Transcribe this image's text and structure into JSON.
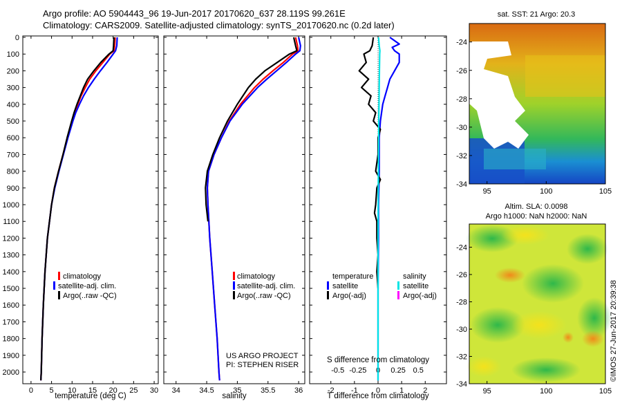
{
  "header": {
    "line1": "Argo profile: AO 5904443_96 19-Jun-2017 20170620_637 28.119S 99.261E",
    "line2": "Climatology: CARS2009. Satellite-adjusted climatology: synTS_20170620.nc (0.2d later)"
  },
  "colors": {
    "climatology": "#ff0000",
    "satellite": "#0000ff",
    "argo": "#000000",
    "salinity_satellite": "#00e5e5",
    "salinity_argo": "#ff00ff"
  },
  "depth_ticks": [
    "0",
    "100",
    "200",
    "300",
    "400",
    "500",
    "600",
    "700",
    "800",
    "900",
    "1000",
    "1100",
    "1200",
    "1300",
    "1400",
    "1500",
    "1600",
    "1700",
    "1800",
    "1900",
    "2000"
  ],
  "chart_data": [
    {
      "type": "line",
      "panel": "temperature",
      "xlabel": "temperature (deg C)",
      "xlim": [
        -2,
        31
      ],
      "ylim": [
        2070,
        0
      ],
      "xticks": [
        "0",
        "5",
        "10",
        "15",
        "20",
        "25",
        "30"
      ],
      "legend": [
        "climatology",
        "satellite-adj. clim.",
        "Argo(..raw -QC)"
      ],
      "series": [
        {
          "name": "climatology",
          "y": [
            0,
            50,
            80,
            100,
            150,
            200,
            250,
            300,
            350,
            400,
            450,
            500,
            600,
            700,
            800,
            900,
            1000,
            1200,
            1400,
            1600,
            1800,
            2000,
            2050
          ],
          "x": [
            20.5,
            20.4,
            20.2,
            19.2,
            17.5,
            15.8,
            14.3,
            13.2,
            12.2,
            11.4,
            10.6,
            10.0,
            8.9,
            7.8,
            6.7,
            5.7,
            5.0,
            4.0,
            3.4,
            3.0,
            2.7,
            2.5,
            2.4
          ]
        },
        {
          "name": "satellite-adj. clim.",
          "y": [
            0,
            50,
            80,
            100,
            150,
            200,
            250,
            300,
            350,
            400,
            450,
            500,
            600,
            700,
            800,
            900,
            1000,
            1200,
            1400,
            1600,
            1800,
            2000,
            2050
          ],
          "x": [
            21.0,
            20.9,
            20.6,
            20.0,
            18.5,
            16.9,
            15.4,
            14.0,
            12.8,
            11.8,
            10.9,
            10.2,
            9.0,
            7.9,
            6.8,
            5.8,
            5.0,
            4.0,
            3.4,
            3.0,
            2.7,
            2.5,
            2.4
          ]
        },
        {
          "name": "Argo(..raw -QC)",
          "y": [
            0,
            50,
            80,
            100,
            150,
            200,
            250,
            300,
            350,
            400,
            450,
            500,
            600,
            700,
            800,
            900,
            1000,
            1200,
            1400,
            1600,
            1800,
            2000,
            2050
          ],
          "x": [
            20.2,
            20.1,
            20.0,
            19.0,
            17.0,
            15.3,
            13.8,
            12.8,
            12.0,
            11.2,
            10.5,
            9.9,
            8.8,
            7.8,
            6.7,
            5.7,
            5.0,
            4.0,
            3.4,
            3.0,
            2.7,
            2.5,
            2.4
          ]
        }
      ]
    },
    {
      "type": "line",
      "panel": "salinity",
      "xlabel": "salinity",
      "xlim": [
        33.8,
        36.1
      ],
      "ylim": [
        2070,
        0
      ],
      "xticks": [
        "34",
        "34.5",
        "35",
        "35.5",
        "36"
      ],
      "legend": [
        "climatology",
        "satellite-adj. clim.",
        "Argo(..raw -QC)"
      ],
      "annotation": [
        "US ARGO PROJECT",
        "PI: STEPHEN RISER"
      ],
      "series": [
        {
          "name": "climatology",
          "y": [
            0,
            50,
            80,
            100,
            150,
            200,
            250,
            300,
            400,
            500,
            600,
            700,
            800,
            900,
            1000,
            1200,
            1400,
            1600,
            1800,
            2000,
            2050
          ],
          "x": [
            35.95,
            35.98,
            35.99,
            35.9,
            35.75,
            35.58,
            35.42,
            35.28,
            35.05,
            34.87,
            34.74,
            34.62,
            34.53,
            34.51,
            34.52,
            34.55,
            34.59,
            34.63,
            34.67,
            34.7,
            34.71
          ]
        },
        {
          "name": "satellite-adj. clim.",
          "y": [
            0,
            50,
            80,
            100,
            150,
            200,
            250,
            300,
            400,
            500,
            600,
            700,
            800,
            900,
            1000,
            1200,
            1400,
            1600,
            1800,
            2000,
            2050
          ],
          "x": [
            36.0,
            36.03,
            36.02,
            35.95,
            35.8,
            35.64,
            35.48,
            35.33,
            35.08,
            34.88,
            34.74,
            34.62,
            34.53,
            34.51,
            34.52,
            34.55,
            34.59,
            34.63,
            34.67,
            34.7,
            34.71
          ]
        },
        {
          "name": "Argo(..raw -QC)",
          "y": [
            0,
            50,
            80,
            100,
            150,
            200,
            250,
            300,
            400,
            500,
            600,
            700,
            800,
            900,
            1000,
            1100
          ],
          "x": [
            35.92,
            35.95,
            35.97,
            35.85,
            35.65,
            35.45,
            35.3,
            35.18,
            35.0,
            34.84,
            34.71,
            34.6,
            34.51,
            34.48,
            34.49,
            34.52
          ]
        }
      ]
    },
    {
      "type": "line",
      "panel": "difference",
      "xlabel": "T difference from climatology",
      "xlabel2": "S difference from climatology",
      "xlim": [
        -2.9,
        2.9
      ],
      "ylim": [
        2070,
        0
      ],
      "xticks": [
        "-2",
        "-1",
        "0",
        "1",
        "2"
      ],
      "x2ticks": [
        "-0.5",
        "-0.25",
        "0",
        "0.25",
        "0.5"
      ],
      "legend_headers": [
        "temperature",
        "salinity"
      ],
      "legend": [
        "satellite",
        "Argo(-adj)",
        "satellite",
        "Argo(-adj)"
      ],
      "series": [
        {
          "name": "satellite",
          "y": [
            0,
            40,
            60,
            80,
            100,
            150,
            200,
            250,
            300,
            350,
            400,
            500,
            600,
            700,
            800,
            1000,
            1200,
            1500,
            2050
          ],
          "x": [
            0.5,
            0.9,
            0.6,
            0.7,
            0.9,
            0.9,
            0.7,
            0.5,
            0.4,
            0.3,
            0.2,
            0.1,
            0.05,
            0.05,
            0.05,
            0.02,
            0.02,
            0.0,
            0.0
          ]
        },
        {
          "name": "Argo(-adj)",
          "y": [
            0,
            50,
            80,
            100,
            150,
            200,
            250,
            300,
            350,
            400,
            450,
            500,
            550,
            600,
            700,
            800,
            850,
            900,
            1000,
            1050,
            1100,
            1200,
            1300,
            1400,
            1500
          ],
          "x": [
            -0.2,
            -0.25,
            -0.35,
            -0.6,
            -0.5,
            -0.8,
            -0.4,
            -0.7,
            -0.3,
            -0.4,
            -0.1,
            -0.2,
            0.1,
            0.0,
            0.0,
            -0.1,
            0.1,
            -0.05,
            -0.1,
            -0.15,
            -0.05,
            -0.05,
            0.0,
            -0.05,
            0.0
          ]
        },
        {
          "name": "salinity satellite",
          "y": [
            0,
            50,
            80,
            100,
            200,
            300,
            400,
            500,
            700,
            900,
            1200,
            1500,
            2050
          ],
          "x": [
            0.02,
            0.05,
            0.08,
            0.07,
            0.06,
            0.05,
            0.04,
            0.03,
            0.02,
            0.01,
            0.0,
            0.0,
            0.0
          ]
        }
      ]
    }
  ],
  "map_top": {
    "title": "sat. SST: 21 Argo: 20.3",
    "xticks": [
      "95",
      "100",
      "105"
    ],
    "yticks": [
      "-24",
      "-26",
      "-28",
      "-30",
      "-32",
      "-34"
    ]
  },
  "map_bottom": {
    "title1": "Altim. SLA: 0.0098",
    "title2": "Argo h1000: NaN h2000: NaN",
    "xticks": [
      "95",
      "100",
      "105"
    ],
    "yticks": [
      "-24",
      "-26",
      "-28",
      "-30",
      "-32",
      "-34"
    ]
  },
  "watermark": "©IMOS 27-Jun-2017 20:39:38"
}
